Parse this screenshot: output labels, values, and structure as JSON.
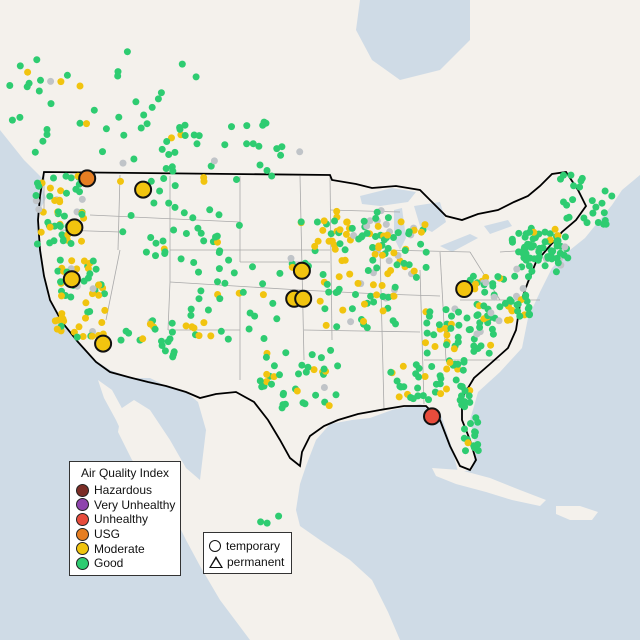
{
  "colors": {
    "water": "#cfdbe6",
    "land": "#f4f1ec",
    "us_land": "#f0ede8",
    "border": "#000000",
    "state_line": "#a9a9a9",
    "good": "#2ecc71",
    "moderate": "#f1c40f",
    "usg": "#e67e22",
    "unhealthy": "#e74c3c",
    "very_unhealthy": "#8e44ad",
    "hazardous": "#7b2d26",
    "no_data": "#c0c4c8"
  },
  "legend": {
    "title": "Air Quality Index",
    "items": [
      {
        "label": "Hazardous",
        "color": "#7b2d26"
      },
      {
        "label": "Very Unhealthy",
        "color": "#8e44ad"
      },
      {
        "label": "Unhealthy",
        "color": "#e74c3c"
      },
      {
        "label": "USG",
        "color": "#e67e22"
      },
      {
        "label": "Moderate",
        "color": "#f1c40f"
      },
      {
        "label": "Good",
        "color": "#2ecc71"
      }
    ]
  },
  "shape_legend": {
    "temporary": "temporary",
    "permanent": "permanent"
  },
  "large_monitors": [
    {
      "lon": -122.5,
      "lat": 48.9,
      "category": "usg"
    },
    {
      "lon": -116.8,
      "lat": 48.1,
      "category": "moderate"
    },
    {
      "lon": -122.7,
      "lat": 45.4,
      "category": "moderate"
    },
    {
      "lon": -121.9,
      "lat": 41.7,
      "category": "moderate"
    },
    {
      "lon": -118.0,
      "lat": 37.1,
      "category": "moderate"
    },
    {
      "lon": -101.0,
      "lat": 42.3,
      "category": "moderate"
    },
    {
      "lon": -101.6,
      "lat": 40.3,
      "category": "moderate"
    },
    {
      "lon": -100.8,
      "lat": 40.3,
      "category": "moderate"
    },
    {
      "lon": -86.3,
      "lat": 41.0,
      "category": "moderate"
    },
    {
      "lon": -89.9,
      "lat": 31.9,
      "category": "unhealthy"
    }
  ]
}
